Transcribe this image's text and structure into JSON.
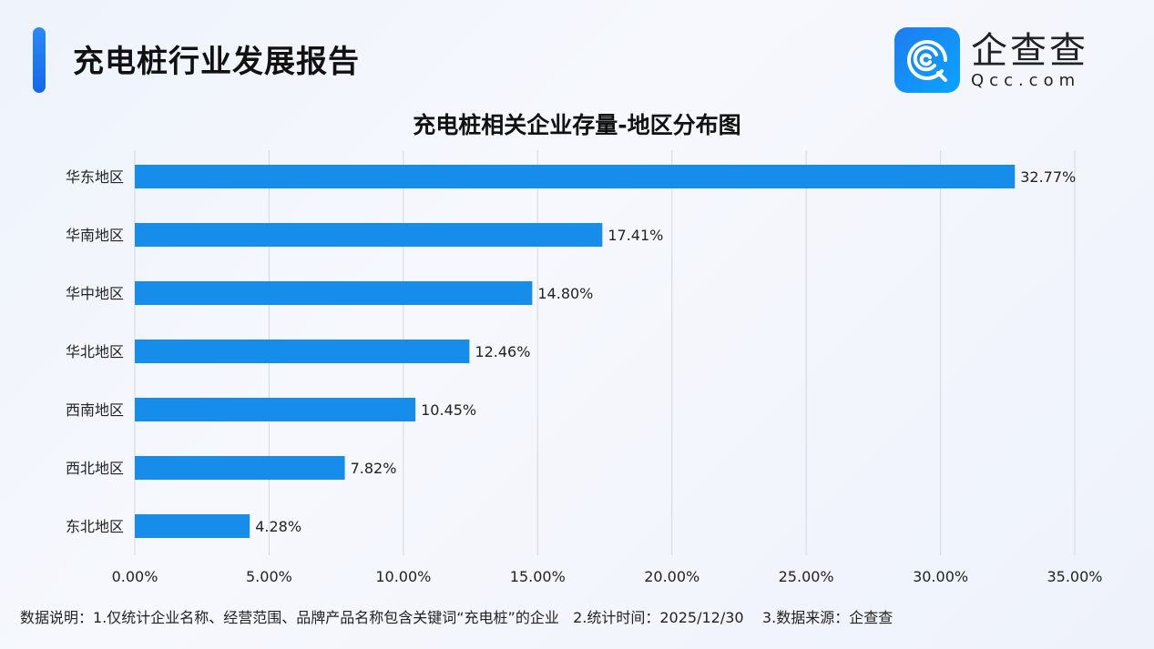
{
  "header": {
    "title": "充电桩行业发展报告",
    "logo_cn": "企查查",
    "logo_en": "Qcc.com",
    "accent_color": "#1a74ec"
  },
  "chart_data": {
    "type": "bar",
    "orientation": "horizontal",
    "title": "充电桩相关企业存量-地区分布图",
    "categories": [
      "华东地区",
      "华南地区",
      "华中地区",
      "华北地区",
      "西南地区",
      "西北地区",
      "东北地区"
    ],
    "values": [
      32.77,
      17.41,
      14.8,
      12.46,
      10.45,
      7.82,
      4.28
    ],
    "data_labels": [
      "32.77%",
      "17.41%",
      "14.80%",
      "12.46%",
      "10.45%",
      "7.82%",
      "4.28%"
    ],
    "xlim": [
      0,
      35
    ],
    "x_ticks": [
      "0.00%",
      "5.00%",
      "10.00%",
      "15.00%",
      "20.00%",
      "25.00%",
      "30.00%",
      "35.00%"
    ],
    "grid": true,
    "bar_color": "#168ceb"
  },
  "footer": {
    "note": "数据说明：1.仅统计企业名称、经营范围、品牌产品名称包含关键词“充电桩”的企业   2.统计时间：2025/12/30    3.数据来源：企查查"
  }
}
